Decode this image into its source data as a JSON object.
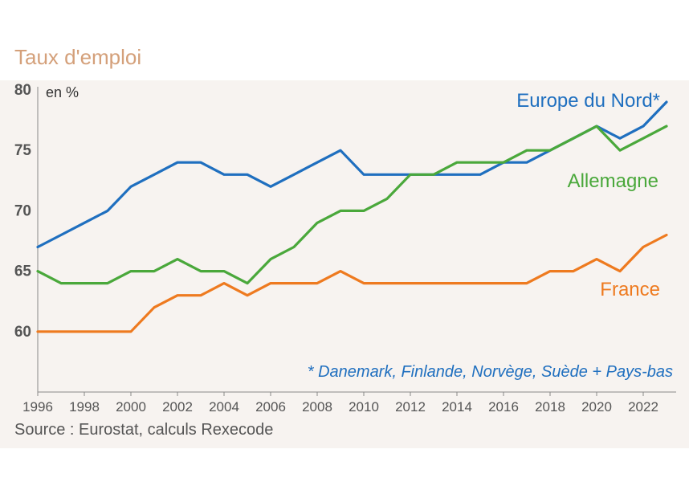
{
  "title": "Taux d'emploi",
  "source": "Source : Eurostat, calculs Rexecode",
  "chart_data": {
    "type": "line",
    "title": "Taux d'emploi",
    "unit_label": "en %",
    "ylim": [
      55,
      80
    ],
    "yticks": [
      60,
      65,
      70,
      75,
      80
    ],
    "xlim": [
      1996,
      2023
    ],
    "xticks": [
      1996,
      1998,
      2000,
      2002,
      2004,
      2006,
      2008,
      2010,
      2012,
      2014,
      2016,
      2018,
      2020,
      2022
    ],
    "grid": false,
    "x": [
      1996,
      1997,
      1998,
      1999,
      2000,
      2001,
      2002,
      2003,
      2004,
      2005,
      2006,
      2007,
      2008,
      2009,
      2010,
      2011,
      2012,
      2013,
      2014,
      2015,
      2016,
      2017,
      2018,
      2019,
      2020,
      2021,
      2022,
      2023
    ],
    "series": [
      {
        "name": "Europe du Nord*",
        "color": "#1f6fbf",
        "values": [
          67,
          68,
          69,
          70,
          72,
          73,
          74,
          74,
          73,
          73,
          72,
          73,
          74,
          75,
          73,
          73,
          73,
          73,
          73,
          73,
          74,
          74,
          75,
          76,
          77,
          76,
          77,
          79
        ]
      },
      {
        "name": "Allemagne",
        "color": "#4aa83b",
        "values": [
          65,
          64,
          64,
          64,
          65,
          65,
          66,
          65,
          65,
          64,
          66,
          67,
          69,
          70,
          70,
          71,
          73,
          73,
          74,
          74,
          74,
          75,
          75,
          76,
          77,
          75,
          76,
          77
        ]
      },
      {
        "name": "France",
        "color": "#ee7a1f",
        "values": [
          60,
          60,
          60,
          60,
          60,
          62,
          63,
          63,
          64,
          63,
          64,
          64,
          64,
          65,
          64,
          64,
          64,
          64,
          64,
          64,
          64,
          64,
          65,
          65,
          66,
          65,
          67,
          68
        ]
      }
    ],
    "annotation": "* Danemark, Finlande, Norvège, Suède + Pays-bas"
  }
}
